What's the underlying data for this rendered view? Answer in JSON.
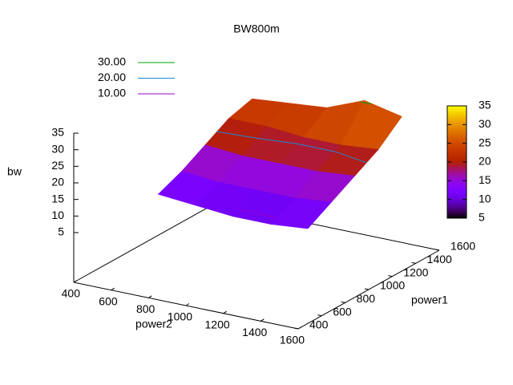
{
  "chart_data": {
    "type": "surface",
    "title": "BW800m",
    "x_label": "power2",
    "y_label": "power1",
    "z_label": "bw",
    "x": [
      600,
      800,
      1000,
      1200,
      1400
    ],
    "y": [
      800,
      1000,
      1200,
      1400,
      1600
    ],
    "z": [
      [
        11,
        10,
        9,
        9,
        10
      ],
      [
        14,
        13,
        13,
        13,
        14
      ],
      [
        18,
        17,
        17,
        17,
        18
      ],
      [
        22,
        22,
        21,
        21,
        22
      ],
      [
        24,
        25,
        26,
        30.5,
        28
      ]
    ],
    "xlim": [
      400,
      1600
    ],
    "xticks": [
      400,
      600,
      800,
      1000,
      1200,
      1400,
      1600
    ],
    "ylim": [
      400,
      1600
    ],
    "yticks": [
      400,
      600,
      800,
      1000,
      1200,
      1400,
      1600
    ],
    "zlim": [
      -10,
      35
    ],
    "zticks": [
      5,
      10,
      15,
      20,
      25,
      30,
      35
    ],
    "cblim": [
      5,
      35
    ],
    "cbticks": [
      5,
      10,
      15,
      20,
      25,
      30,
      35
    ],
    "contours": [
      {
        "level": {
          "value": 30,
          "label": "30.00"
        },
        "color": "#00a000"
      },
      {
        "level": {
          "value": 20,
          "label": "20.00"
        },
        "color": "#1e8ad0"
      },
      {
        "level": {
          "value": 10,
          "label": "10.00"
        },
        "color": "#9400d3"
      }
    ]
  }
}
